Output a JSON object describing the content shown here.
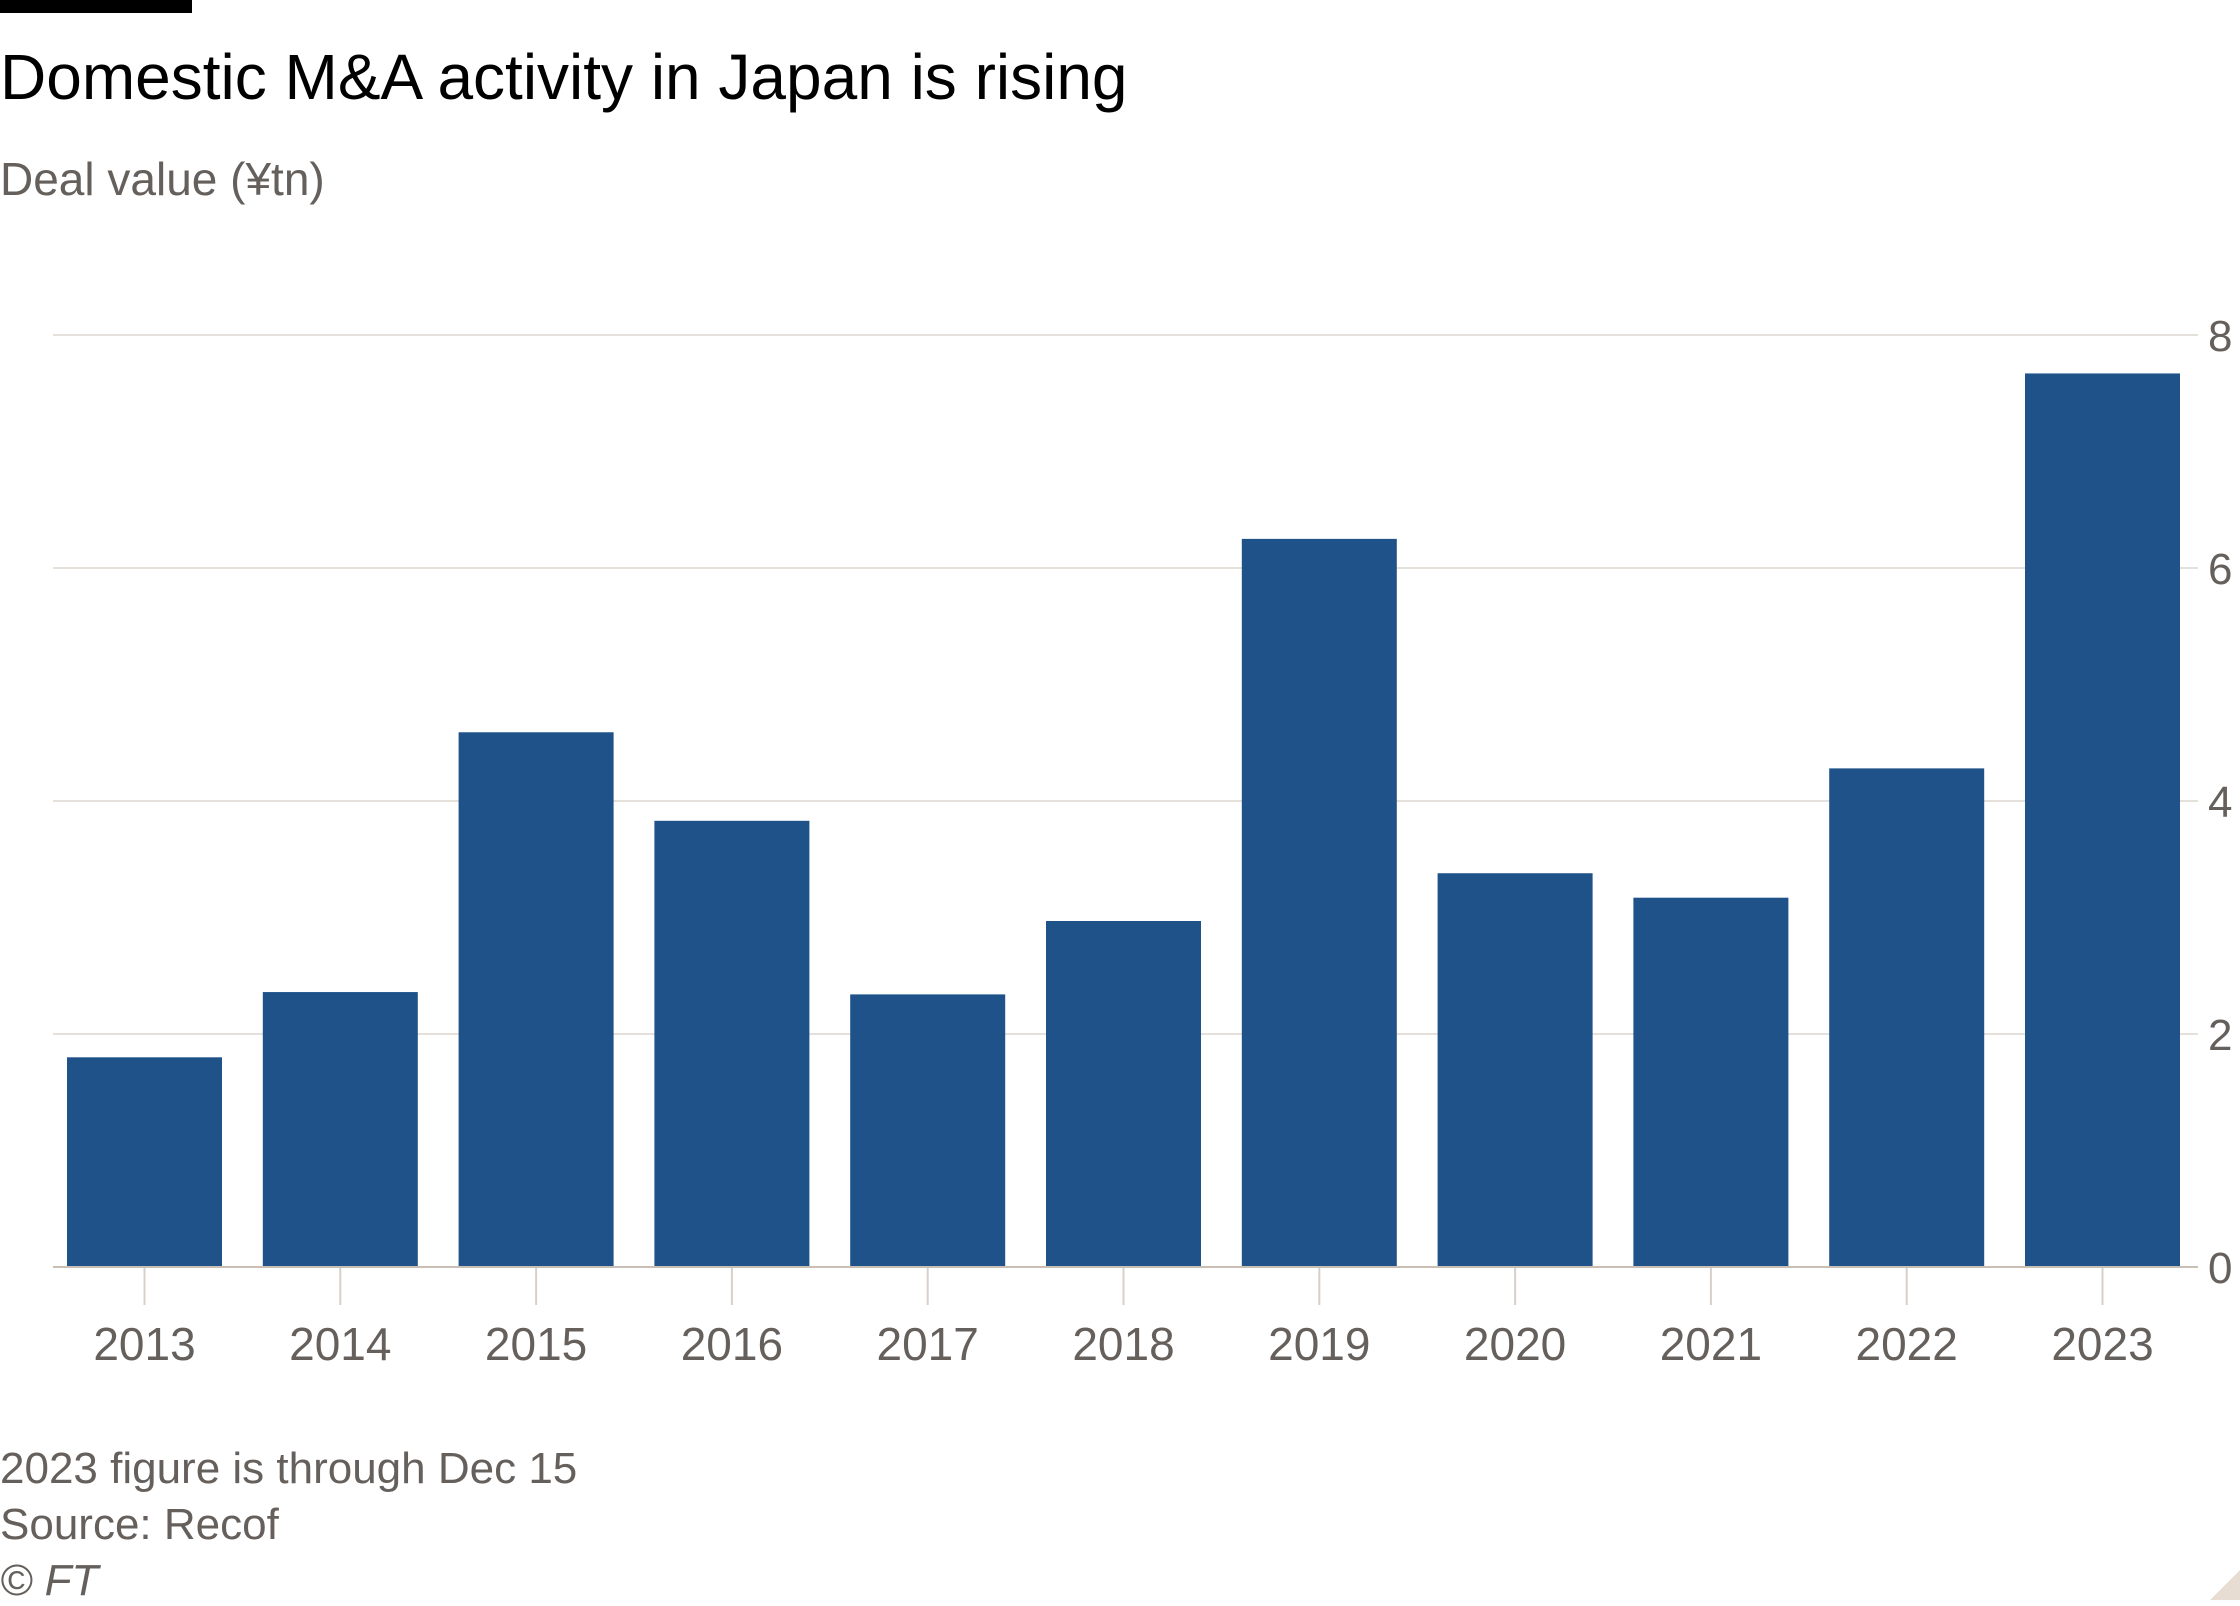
{
  "header": {
    "title": "Domestic M&A activity in Japan is rising",
    "subtitle": "Deal value (¥tn)"
  },
  "footer": {
    "note": "2023 figure is through Dec 15",
    "source": "Source: Recof",
    "copyright": "© FT"
  },
  "colors": {
    "bar": "#1f5289",
    "grid": "#e6e0da",
    "axis_text": "#66605c"
  },
  "chart_data": {
    "type": "bar",
    "title": "Domestic M&A activity in Japan is rising",
    "xlabel": "",
    "ylabel": "Deal value (¥tn)",
    "categories": [
      "2013",
      "2014",
      "2015",
      "2016",
      "2017",
      "2018",
      "2019",
      "2020",
      "2021",
      "2022",
      "2023"
    ],
    "values": [
      1.8,
      2.36,
      4.59,
      3.83,
      2.34,
      2.97,
      6.25,
      3.38,
      3.17,
      4.28,
      7.67
    ],
    "ylim": [
      0,
      8
    ],
    "yticks": [
      "0",
      "2",
      "4",
      "6",
      "8"
    ],
    "grid": true,
    "y_axis_position": "right"
  }
}
